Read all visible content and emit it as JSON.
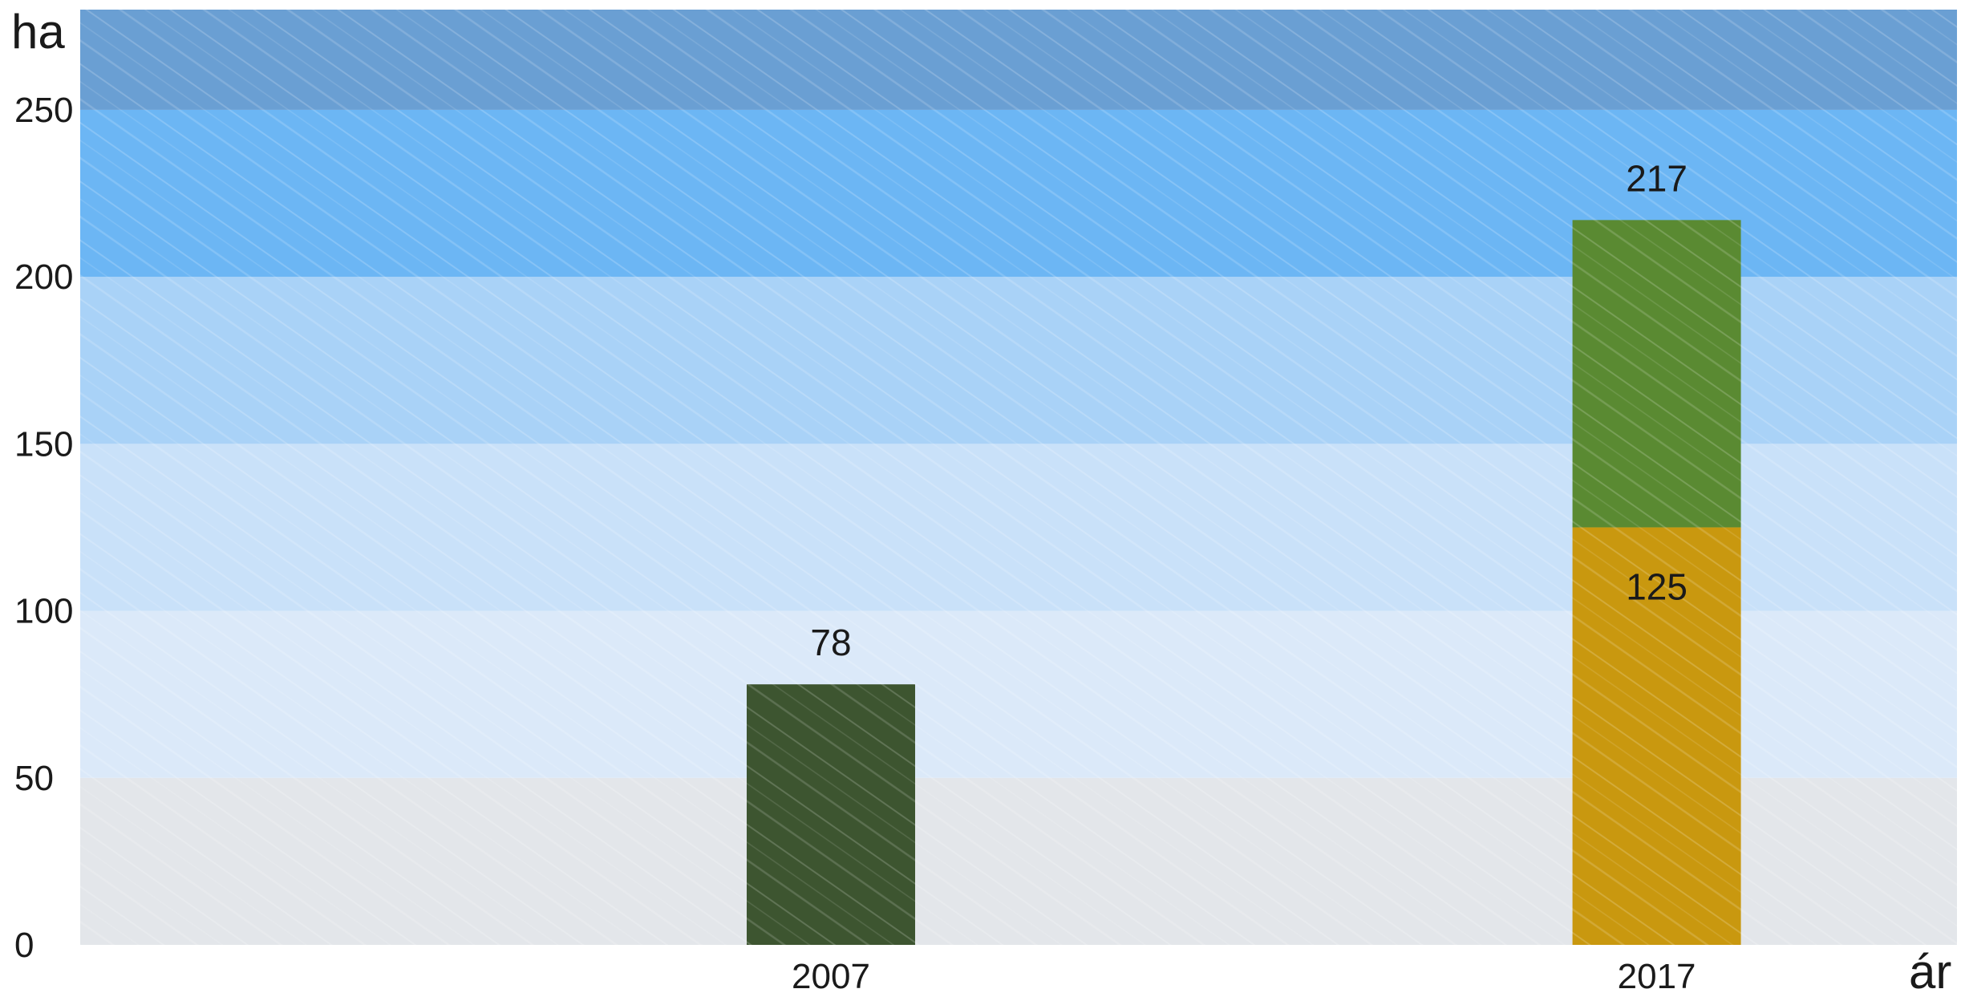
{
  "chart_data": {
    "type": "bar",
    "stacked": true,
    "ylabel": "ha",
    "xlabel": "ár",
    "ylim": [
      0,
      280
    ],
    "yticks": [
      0,
      50,
      100,
      150,
      200,
      250
    ],
    "categories": [
      "2007",
      "2017"
    ],
    "segments": [
      {
        "category": "2007",
        "base": 0,
        "value": 78,
        "color": "#3d5530",
        "label": "78"
      },
      {
        "category": "2017",
        "base": 0,
        "value": 125,
        "color": "#c9980f",
        "label": "125"
      },
      {
        "category": "2017",
        "base": 125,
        "value": 92,
        "color": "#5a8a32",
        "label": "217"
      }
    ],
    "background_bands": [
      {
        "from": 0,
        "to": 50,
        "color": "#e3e6ea"
      },
      {
        "from": 50,
        "to": 100,
        "color": "#dbe9f9"
      },
      {
        "from": 100,
        "to": 150,
        "color": "#c9e1f9"
      },
      {
        "from": 150,
        "to": 200,
        "color": "#a9d2f7"
      },
      {
        "from": 200,
        "to": 250,
        "color": "#6cb6f4"
      },
      {
        "from": 250,
        "to": 280,
        "color": "#6a9fd3"
      }
    ],
    "grid": false,
    "legend": "none"
  }
}
